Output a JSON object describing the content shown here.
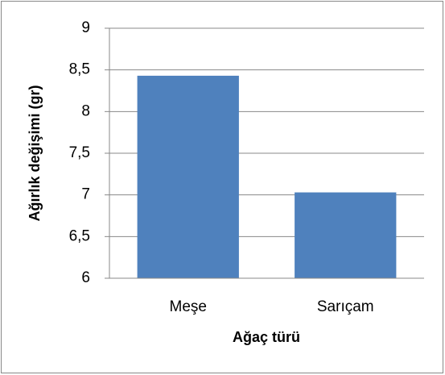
{
  "chart_data": {
    "type": "bar",
    "categories": [
      "Meşe",
      "Sarıçam"
    ],
    "values": [
      8.43,
      7.03
    ],
    "color": "#4f81bd",
    "xlabel": "Ağaç türü",
    "ylabel": "Ağırlık değişimi (gr)",
    "ylim": [
      6,
      9
    ],
    "yticks": [
      6,
      {
        "value": 6.5,
        "label": "6,5"
      },
      7,
      {
        "value": 7.5,
        "label": "7,5"
      },
      8,
      {
        "value": 8.5,
        "label": "8,5"
      },
      9
    ],
    "grid": true
  }
}
